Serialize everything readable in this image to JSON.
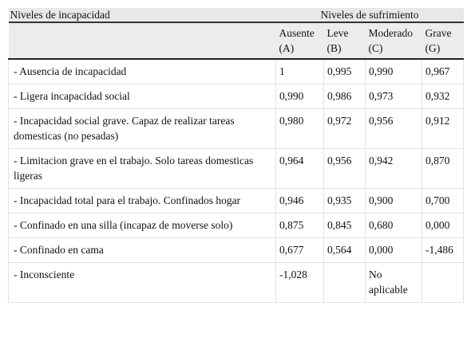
{
  "table": {
    "group_header": [
      "Niveles de incapacidad",
      "Niveles de sufrimiento"
    ],
    "columns": [
      [
        "Ausente",
        "(A)"
      ],
      [
        "Leve",
        "(B)"
      ],
      [
        "Moderado",
        "(C)"
      ],
      [
        "Grave",
        "(G)"
      ]
    ],
    "rows": [
      [
        "- Ausencia de incapacidad",
        "1",
        "0,995",
        "0,990",
        "0,967"
      ],
      [
        "- Ligera incapacidad social",
        "0,990",
        "0,986",
        "0,973",
        "0,932"
      ],
      [
        "- Incapacidad social grave. Capaz de realizar tareas domesticas (no pesadas)",
        "0,980",
        "0,972",
        "0,956",
        "0,912"
      ],
      [
        "- Limitacion grave en el trabajo. Solo tareas domesticas ligeras",
        "0,964",
        "0,956",
        "0,942",
        "0,870"
      ],
      [
        "- Incapacidad total para el trabajo. Confinados hogar",
        "0,946",
        "0,935",
        "0,900",
        "0,700"
      ],
      [
        "- Confinado en una silla (incapaz de moverse solo)",
        "0,875",
        "0,845",
        "0,680",
        "0,000"
      ],
      [
        "- Confinado en cama",
        "0,677",
        "0,564",
        "0,000",
        "-1,486"
      ],
      [
        "- Inconsciente",
        "-1,028",
        null,
        "No aplicable",
        null
      ]
    ]
  }
}
